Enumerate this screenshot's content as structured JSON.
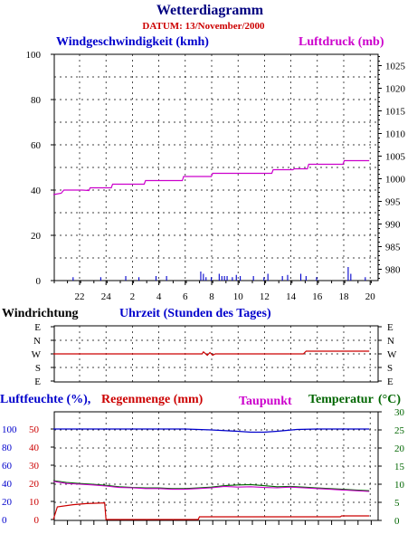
{
  "title": "Wetterdiagramm",
  "date_line": "DATUM: 13/November/2000",
  "colors": {
    "title": "#000080",
    "date": "#cc0000",
    "wind": "#0000cc",
    "pressure": "#cc00cc",
    "direction": "#cc0000",
    "humidity": "#0000cc",
    "rain": "#cc0000",
    "dewpoint": "#cc00cc",
    "temperature": "#006600"
  },
  "chart_data": [
    {
      "id": "wind-pressure",
      "type": "line",
      "left_title": "Windgeschwindigkeit (kmh)",
      "right_title": "Luftdruck (mb)",
      "xlabel": "Uhrzeit (Stunden des Tages)",
      "x_ticks": [
        "22",
        "24",
        "2",
        "4",
        "6",
        "8",
        "10",
        "12",
        "14",
        "16",
        "18",
        "20"
      ],
      "x_range_hours": [
        0,
        24
      ],
      "y_left_ticks": [
        "0",
        "20",
        "40",
        "60",
        "80",
        "100"
      ],
      "y_left_range": [
        0,
        100
      ],
      "y_right_ticks": [
        "980",
        "985",
        "990",
        "995",
        "1000",
        "1005",
        "1010",
        "1015",
        "1020",
        "1025"
      ],
      "y_right_range": [
        977.5,
        1027.5
      ],
      "pressure": [
        [
          0,
          996.5
        ],
        [
          0.6,
          996.8
        ],
        [
          0.8,
          997.5
        ],
        [
          2.2,
          997.5
        ],
        [
          2.7,
          997.4
        ],
        [
          2.8,
          998.0
        ],
        [
          4.4,
          998.0
        ],
        [
          4.5,
          998.8
        ],
        [
          6.9,
          998.8
        ],
        [
          7.0,
          999.6
        ],
        [
          9.8,
          999.6
        ],
        [
          9.9,
          1000.5
        ],
        [
          12.0,
          1000.5
        ],
        [
          12.1,
          1001.2
        ],
        [
          16.6,
          1001.2
        ],
        [
          16.7,
          1002.0
        ],
        [
          18.2,
          1002.0
        ],
        [
          18.3,
          1002.2
        ],
        [
          19.3,
          1002.2
        ],
        [
          19.4,
          1003.2
        ],
        [
          22.0,
          1003.2
        ],
        [
          22.1,
          1004.0
        ],
        [
          24.0,
          1004.0
        ]
      ],
      "wind_gusts": [
        [
          1.5,
          1.5
        ],
        [
          3.6,
          1.5
        ],
        [
          5.5,
          2
        ],
        [
          6.5,
          1.5
        ],
        [
          7.8,
          2
        ],
        [
          8.6,
          2
        ],
        [
          11.2,
          4
        ],
        [
          11.4,
          3
        ],
        [
          11.6,
          1.5
        ],
        [
          12.0,
          1.5
        ],
        [
          12.6,
          3
        ],
        [
          12.8,
          2
        ],
        [
          13.0,
          2
        ],
        [
          13.2,
          2
        ],
        [
          13.6,
          1.5
        ],
        [
          13.9,
          2.5
        ],
        [
          14.2,
          2
        ],
        [
          15.2,
          2
        ],
        [
          16.0,
          1.5
        ],
        [
          16.3,
          3
        ],
        [
          17.4,
          2
        ],
        [
          17.8,
          2.5
        ],
        [
          18.8,
          3
        ],
        [
          19.2,
          2
        ],
        [
          20.0,
          1.5
        ],
        [
          22.4,
          6
        ],
        [
          22.6,
          3
        ],
        [
          23.7,
          1.5
        ]
      ],
      "grid": true
    },
    {
      "id": "wind-direction",
      "type": "line",
      "title": "Windrichtung",
      "y_ticks": [
        "E",
        "N",
        "W",
        "S",
        "E"
      ],
      "direction_level": "W",
      "series": [
        [
          0,
          2.0
        ],
        [
          11.3,
          2.0
        ],
        [
          11.4,
          1.85
        ],
        [
          11.7,
          2.1
        ],
        [
          11.9,
          1.9
        ],
        [
          12.1,
          2.1
        ],
        [
          12.3,
          2.0
        ],
        [
          19.0,
          2.0
        ],
        [
          19.2,
          1.8
        ],
        [
          24.0,
          1.8
        ]
      ]
    },
    {
      "id": "humidity-temperature",
      "type": "line",
      "humidity_title": "Luftfeuchte (%),",
      "rain_title": "Regenmenge (mm)",
      "dewpoint_title": "Taupunkt",
      "temperature_title": "Temperatur",
      "temperature_unit": "(°C)",
      "y_humidity_ticks": [
        "0",
        "20",
        "40",
        "60",
        "80",
        "100"
      ],
      "y_rain_ticks": [
        "0",
        "10",
        "20",
        "30",
        "40",
        "50"
      ],
      "y_temp_ticks": [
        "0",
        "5",
        "10",
        "15",
        "20",
        "25",
        "30"
      ],
      "y_temp_range": [
        0,
        30
      ],
      "humidity": [
        [
          0,
          100
        ],
        [
          8,
          100
        ],
        [
          10,
          100
        ],
        [
          12,
          99
        ],
        [
          14,
          97.5
        ],
        [
          15,
          96.5
        ],
        [
          16,
          96.5
        ],
        [
          17,
          97.5
        ],
        [
          18.5,
          99.5
        ],
        [
          20,
          100
        ],
        [
          24,
          100
        ]
      ],
      "temperature": [
        [
          0,
          11.0
        ],
        [
          1,
          10.5
        ],
        [
          2,
          10.2
        ],
        [
          3,
          10.0
        ],
        [
          4,
          9.7
        ],
        [
          5,
          9.3
        ],
        [
          6,
          9.1
        ],
        [
          7,
          9.0
        ],
        [
          8,
          9.0
        ],
        [
          9,
          8.8
        ],
        [
          10,
          8.8
        ],
        [
          11,
          9.0
        ],
        [
          12,
          9.2
        ],
        [
          13,
          9.6
        ],
        [
          14,
          9.8
        ],
        [
          15,
          9.9
        ],
        [
          16,
          9.6
        ],
        [
          17,
          9.3
        ],
        [
          18,
          9.4
        ],
        [
          19,
          9.2
        ],
        [
          20,
          9.0
        ],
        [
          21,
          8.8
        ],
        [
          22,
          8.6
        ],
        [
          23,
          8.4
        ],
        [
          24,
          8.2
        ]
      ],
      "dewpoint": [
        [
          0,
          10.8
        ],
        [
          1,
          10.2
        ],
        [
          2,
          10.0
        ],
        [
          3,
          9.8
        ],
        [
          4,
          9.5
        ],
        [
          5,
          9.1
        ],
        [
          6,
          9.0
        ],
        [
          7,
          8.8
        ],
        [
          8,
          8.8
        ],
        [
          9,
          8.6
        ],
        [
          10,
          8.6
        ],
        [
          11,
          8.8
        ],
        [
          12,
          9.0
        ],
        [
          13,
          9.4
        ],
        [
          14,
          9.2
        ],
        [
          15,
          9.3
        ],
        [
          16,
          9.1
        ],
        [
          17,
          9.0
        ],
        [
          18,
          9.2
        ],
        [
          19,
          9.0
        ],
        [
          20,
          8.8
        ],
        [
          21,
          8.6
        ],
        [
          22,
          8.4
        ],
        [
          23,
          8.2
        ],
        [
          24,
          8.0
        ]
      ],
      "rain": [
        [
          0,
          0
        ],
        [
          0.3,
          7
        ],
        [
          1.5,
          8.2
        ],
        [
          2.5,
          8.8
        ],
        [
          3.9,
          9.2
        ],
        [
          4.0,
          0
        ],
        [
          11.0,
          0
        ],
        [
          11.1,
          1.5
        ],
        [
          21.8,
          1.5
        ],
        [
          21.9,
          2
        ],
        [
          24.0,
          2
        ]
      ]
    }
  ]
}
